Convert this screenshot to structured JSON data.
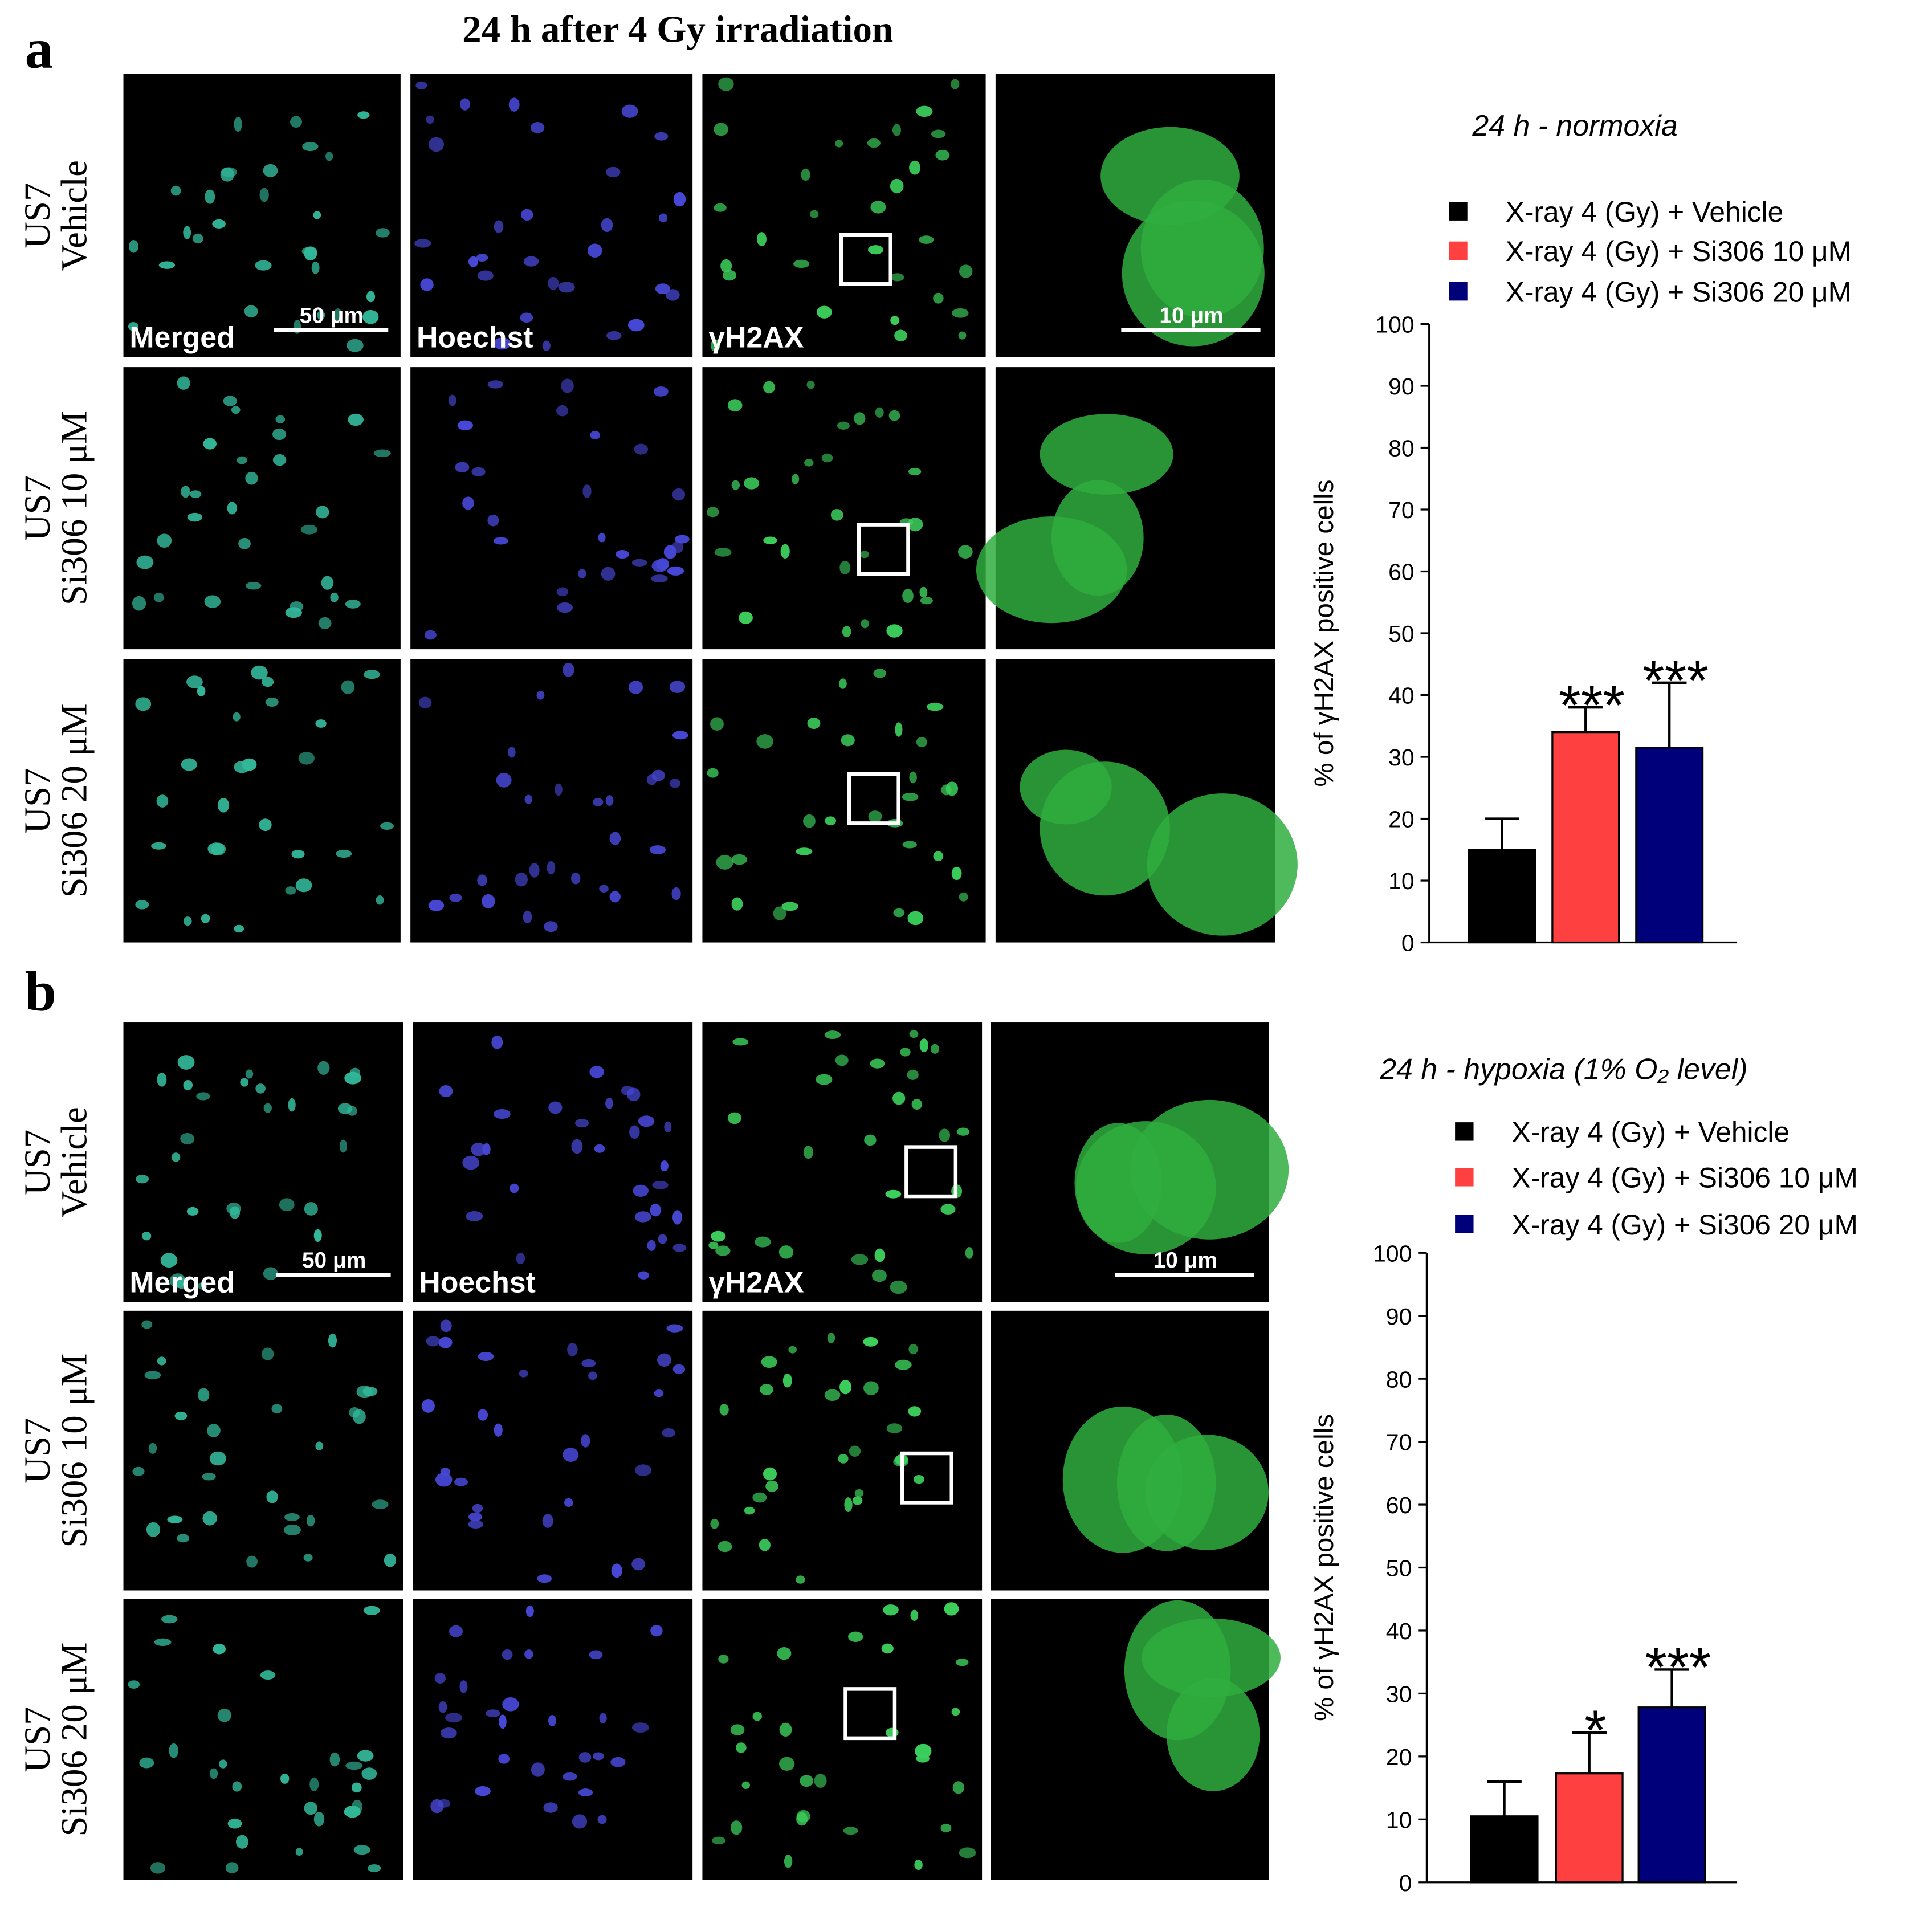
{
  "figure": {
    "title": "24 h after 4 Gy irradiation",
    "panels": [
      {
        "label": "a",
        "rows": [
          [
            "US7",
            "Vehicle"
          ],
          [
            "US7",
            "Si306 10 μM"
          ],
          [
            "US7",
            "Si306 20 μM"
          ]
        ],
        "channels": [
          "Merged",
          "Hoechst",
          "γH2AX"
        ],
        "scale_bars": [
          "50 μm",
          "10 μm"
        ]
      },
      {
        "label": "b",
        "rows": [
          [
            "US7",
            "Vehicle"
          ],
          [
            "US7",
            "Si306 10 μM"
          ],
          [
            "US7",
            "Si306 20 μM"
          ]
        ],
        "channels": [
          "Merged",
          "Hoechst",
          "γH2AX"
        ],
        "scale_bars": [
          "50 μm",
          "10 μm"
        ]
      }
    ]
  },
  "chart_data": [
    {
      "type": "bar",
      "title": "24 h - normoxia",
      "ylabel": "% of γH2AX positive cells",
      "ylim": [
        0,
        100
      ],
      "yticks": [
        0,
        10,
        20,
        30,
        40,
        50,
        60,
        70,
        80,
        90,
        100
      ],
      "series": [
        {
          "name": "X-ray 4 (Gy) + Vehicle",
          "color": "#000000",
          "values": [
            15
          ],
          "errors": [
            5
          ]
        },
        {
          "name": "X-ray 4 (Gy) + Si306 10 μM",
          "color": "#ff4040",
          "values": [
            34
          ],
          "errors": [
            4
          ],
          "significance": [
            "***"
          ]
        },
        {
          "name": "X-ray 4 (Gy) + Si306 20 μM",
          "color": "#00007a",
          "values": [
            31.5
          ],
          "errors": [
            10.5
          ],
          "significance": [
            "***"
          ]
        }
      ]
    },
    {
      "type": "bar",
      "title": "24 h - hypoxia (1% O₂ level)",
      "ylabel": "% of γH2AX positive cells",
      "ylim": [
        0,
        100
      ],
      "yticks": [
        0,
        10,
        20,
        30,
        40,
        50,
        60,
        70,
        80,
        90,
        100
      ],
      "series": [
        {
          "name": "X-ray 4 (Gy) + Vehicle",
          "color": "#000000",
          "values": [
            10.5
          ],
          "errors": [
            5.5
          ]
        },
        {
          "name": "X-ray 4 (Gy) + Si306 10 μM",
          "color": "#ff4040",
          "values": [
            17.3
          ],
          "errors": [
            6.5
          ],
          "significance": [
            "*"
          ]
        },
        {
          "name": "X-ray 4 (Gy) + Si306 20 μM",
          "color": "#00007a",
          "values": [
            27.8
          ],
          "errors": [
            6
          ],
          "significance": [
            "***"
          ]
        }
      ]
    }
  ]
}
